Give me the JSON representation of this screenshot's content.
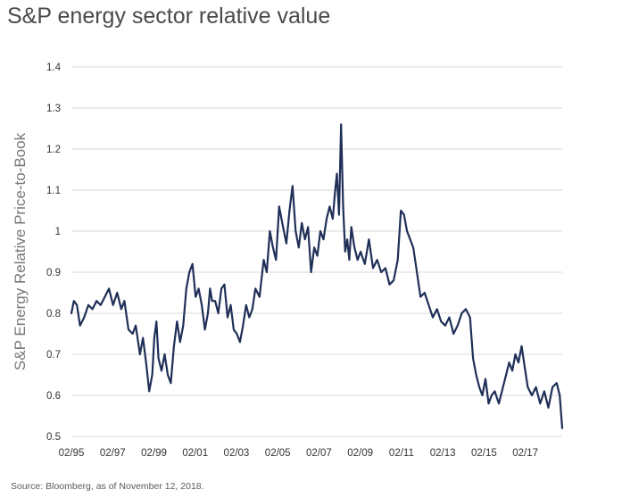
{
  "title": "S&P energy sector relative value",
  "source": "Source: Bloomberg, as of November 12, 2018.",
  "colors": {
    "line": "#1f2f57",
    "grid": "#d9d9d9",
    "title": "#4a4a4a"
  },
  "chart_data": {
    "type": "line",
    "title": "S&P energy sector relative value",
    "ylabel": "S&P Energy Relative Price-to-Book",
    "xlabel": "",
    "ylim": [
      0.5,
      1.4
    ],
    "xlim": [
      1995.08,
      2018.87
    ],
    "grid": true,
    "legend": "none",
    "y_ticks": [
      0.5,
      0.6,
      0.7,
      0.8,
      0.9,
      1,
      1.1,
      1.2,
      1.3,
      1.4
    ],
    "y_tick_labels": [
      "0.5",
      "0.6",
      "0.7",
      "0.8",
      "0.9",
      "1",
      "1.1",
      "1.2",
      "1.3",
      "1.4"
    ],
    "x_ticks": [
      1995.08,
      1997.08,
      1999.08,
      2001.08,
      2003.08,
      2005.08,
      2007.08,
      2009.08,
      2011.08,
      2013.08,
      2015.08,
      2017.08
    ],
    "x_tick_labels": [
      "02/95",
      "02/97",
      "02/99",
      "02/01",
      "02/03",
      "02/05",
      "02/07",
      "02/09",
      "02/11",
      "02/13",
      "02/15",
      "02/17"
    ],
    "series": [
      {
        "x": [
          1995.08,
          1995.2,
          1995.35,
          1995.5,
          1995.7,
          1995.9,
          1996.1,
          1996.3,
          1996.5,
          1996.7,
          1996.9,
          1997.1,
          1997.3,
          1997.5,
          1997.65,
          1997.85,
          1998.05,
          1998.2,
          1998.4,
          1998.55,
          1998.7,
          1998.85,
          1999.0,
          1999.1,
          1999.2,
          1999.3,
          1999.45,
          1999.6,
          1999.75,
          1999.9,
          2000.05,
          2000.2,
          2000.35,
          2000.5,
          2000.65,
          2000.8,
          2000.95,
          2001.1,
          2001.25,
          2001.4,
          2001.55,
          2001.7,
          2001.8,
          2001.9,
          2002.05,
          2002.2,
          2002.35,
          2002.5,
          2002.65,
          2002.8,
          2002.95,
          2003.1,
          2003.25,
          2003.4,
          2003.55,
          2003.7,
          2003.85,
          2004.0,
          2004.2,
          2004.4,
          2004.55,
          2004.7,
          2004.85,
          2005.0,
          2005.15,
          2005.3,
          2005.5,
          2005.65,
          2005.8,
          2005.95,
          2006.1,
          2006.25,
          2006.4,
          2006.55,
          2006.7,
          2006.85,
          2007.0,
          2007.15,
          2007.3,
          2007.45,
          2007.6,
          2007.75,
          2007.85,
          2007.95,
          2008.05,
          2008.15,
          2008.25,
          2008.35,
          2008.45,
          2008.55,
          2008.65,
          2008.8,
          2008.95,
          2009.1,
          2009.3,
          2009.5,
          2009.7,
          2009.9,
          2010.1,
          2010.3,
          2010.5,
          2010.7,
          2010.9,
          2011.05,
          2011.2,
          2011.35,
          2011.5,
          2011.65,
          2011.8,
          2012.0,
          2012.2,
          2012.4,
          2012.6,
          2012.8,
          2013.0,
          2013.2,
          2013.4,
          2013.6,
          2013.8,
          2014.0,
          2014.2,
          2014.4,
          2014.55,
          2014.7,
          2014.85,
          2015.0,
          2015.15,
          2015.3,
          2015.45,
          2015.6,
          2015.8,
          2016.0,
          2016.15,
          2016.3,
          2016.45,
          2016.6,
          2016.75,
          2016.9,
          2017.05,
          2017.2,
          2017.4,
          2017.6,
          2017.8,
          2018.0,
          2018.2,
          2018.4,
          2018.6,
          2018.75,
          2018.87
        ],
        "values": [
          0.8,
          0.83,
          0.82,
          0.77,
          0.79,
          0.82,
          0.81,
          0.83,
          0.82,
          0.84,
          0.86,
          0.82,
          0.85,
          0.81,
          0.83,
          0.76,
          0.75,
          0.77,
          0.7,
          0.74,
          0.68,
          0.61,
          0.65,
          0.74,
          0.78,
          0.69,
          0.66,
          0.7,
          0.65,
          0.63,
          0.72,
          0.78,
          0.73,
          0.77,
          0.86,
          0.9,
          0.92,
          0.84,
          0.86,
          0.82,
          0.76,
          0.8,
          0.86,
          0.83,
          0.83,
          0.8,
          0.86,
          0.87,
          0.79,
          0.82,
          0.76,
          0.75,
          0.73,
          0.77,
          0.82,
          0.79,
          0.81,
          0.86,
          0.84,
          0.93,
          0.9,
          1.0,
          0.96,
          0.93,
          1.06,
          1.02,
          0.97,
          1.05,
          1.11,
          1.0,
          0.96,
          1.02,
          0.98,
          1.01,
          0.9,
          0.96,
          0.94,
          1.0,
          0.98,
          1.03,
          1.06,
          1.03,
          1.09,
          1.14,
          1.04,
          1.26,
          1.06,
          0.95,
          0.98,
          0.93,
          1.01,
          0.96,
          0.93,
          0.95,
          0.92,
          0.98,
          0.91,
          0.93,
          0.9,
          0.91,
          0.87,
          0.88,
          0.93,
          1.05,
          1.04,
          1.0,
          0.98,
          0.96,
          0.91,
          0.84,
          0.85,
          0.82,
          0.79,
          0.81,
          0.78,
          0.77,
          0.79,
          0.75,
          0.77,
          0.8,
          0.81,
          0.79,
          0.69,
          0.65,
          0.62,
          0.6,
          0.64,
          0.58,
          0.6,
          0.61,
          0.58,
          0.62,
          0.65,
          0.68,
          0.66,
          0.7,
          0.68,
          0.72,
          0.67,
          0.62,
          0.6,
          0.62,
          0.58,
          0.61,
          0.57,
          0.62,
          0.63,
          0.6,
          0.52
        ]
      }
    ]
  }
}
